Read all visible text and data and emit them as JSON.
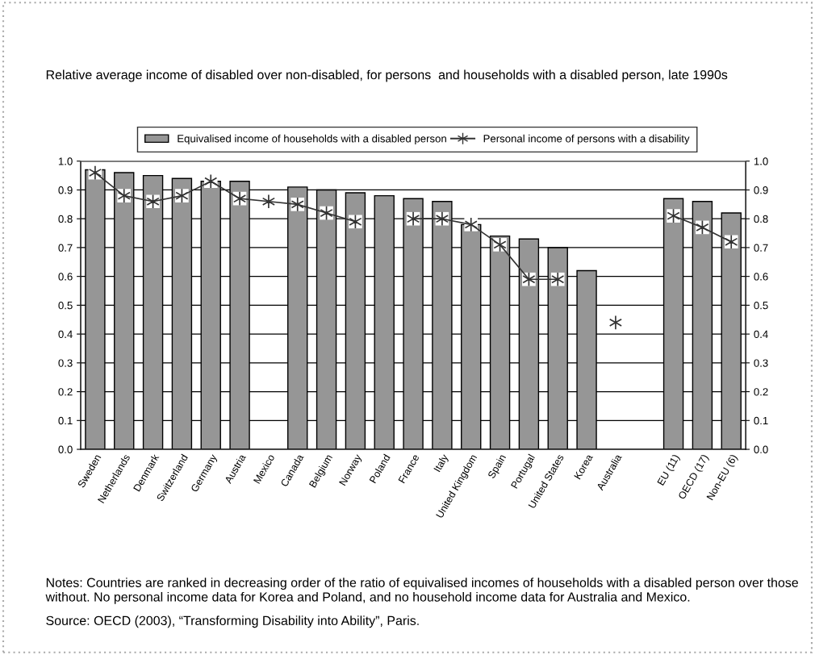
{
  "chart_data": {
    "type": "bar",
    "title": "Relative average income of disabled over non-disabled, for persons  and households with a disabled person, late 1990s",
    "categories": [
      "Sweden",
      "Netherlands",
      "Denmark",
      "Switzerland",
      "Germany",
      "Austria",
      "Mexico",
      "Canada",
      "Belgium",
      "Norway",
      "Poland",
      "France",
      "Italy",
      "United Kingdom",
      "Spain",
      "Portugal",
      "United States",
      "Korea",
      "Australia",
      null,
      "EU (11)",
      "OECD (17)",
      "Non-EU (6)"
    ],
    "series": [
      {
        "name": "Equivalised income of households with a disabled person",
        "color": "#969696",
        "values": [
          0.97,
          0.96,
          0.95,
          0.94,
          0.93,
          0.93,
          null,
          0.91,
          0.9,
          0.89,
          0.88,
          0.87,
          0.86,
          0.78,
          0.74,
          0.73,
          0.7,
          0.62,
          null,
          null,
          0.87,
          0.86,
          0.82
        ]
      },
      {
        "name": "Personal income of persons with a disability",
        "type": "line",
        "axis": "y2",
        "color": "#333333",
        "marker": "cross",
        "values": [
          0.96,
          0.88,
          0.86,
          0.88,
          0.93,
          0.87,
          0.86,
          0.85,
          0.82,
          0.79,
          null,
          0.8,
          0.8,
          0.78,
          0.71,
          0.59,
          0.59,
          null,
          0.44,
          null,
          0.81,
          0.77,
          0.72
        ]
      }
    ],
    "ylim": [
      0,
      1
    ],
    "yticks": [
      {
        "value": 0,
        "label": "0.0"
      },
      {
        "value": 0.1,
        "label": "0.1"
      },
      {
        "value": 0.2,
        "label": "0.2"
      },
      {
        "value": 0.3,
        "label": "0.3"
      },
      {
        "value": 0.4,
        "label": "0.4"
      },
      {
        "value": 0.5,
        "label": "0.5"
      },
      {
        "value": 0.6,
        "label": "0.6"
      },
      {
        "value": 0.7,
        "label": "0.7"
      },
      {
        "value": 0.8,
        "label": "0.8"
      },
      {
        "value": 0.9,
        "label": "0.9"
      },
      {
        "value": 1,
        "label": "1.0"
      }
    ],
    "y2lim": [
      0,
      1
    ],
    "y2ticks": [
      {
        "value": 0,
        "label": "0.0"
      },
      {
        "value": 0.1,
        "label": "0.1"
      },
      {
        "value": 0.2,
        "label": "0.2"
      },
      {
        "value": 0.3,
        "label": "0.3"
      },
      {
        "value": 0.4,
        "label": "0.4"
      },
      {
        "value": 0.5,
        "label": "0.5"
      },
      {
        "value": 0.6,
        "label": "0.6"
      },
      {
        "value": 0.7,
        "label": "0.7"
      },
      {
        "value": 0.8,
        "label": "0.8"
      },
      {
        "value": 0.9,
        "label": "0.9"
      },
      {
        "value": 1,
        "label": "1.0"
      }
    ],
    "grid": "y",
    "legend": "top",
    "annotations": [
      "Notes: Countries are ranked in decreasing order of the ratio of equivalised incomes of households with a disabled person over those without. No personal income data for Korea and Poland, and no household income data for Australia and Mexico.",
      "Source: OECD (2003), “Transforming Disability into Ability”, Paris."
    ]
  }
}
